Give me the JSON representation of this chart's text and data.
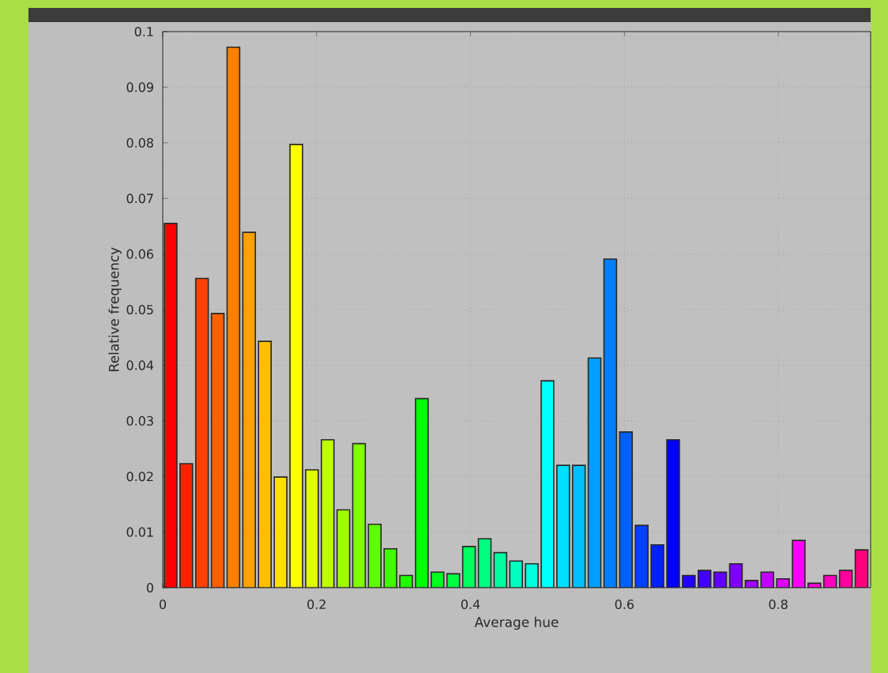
{
  "chart_data": {
    "type": "histogram",
    "xlabel": "Average hue",
    "ylabel": "Relative frequency",
    "bins": [
      0,
      0.0204,
      0.0408,
      0.0612,
      0.0816,
      0.102,
      0.1224,
      0.1429,
      0.1633,
      0.1837,
      0.2041,
      0.2245,
      0.2449,
      0.2653,
      0.2857,
      0.3061,
      0.3265,
      0.3469,
      0.3673,
      0.3878,
      0.4082,
      0.4286,
      0.449,
      0.4694,
      0.4898,
      0.5102,
      0.5306,
      0.551,
      0.5714,
      0.5918,
      0.6122,
      0.6327,
      0.6531,
      0.6735,
      0.6939,
      0.7143,
      0.7347,
      0.7551,
      0.7755,
      0.7959,
      0.8163,
      0.8367,
      0.8571,
      0.8776,
      0.898,
      0.9184
    ],
    "values": [
      0.0655,
      0.0223,
      0.0556,
      0.0493,
      0.0972,
      0.0639,
      0.0443,
      0.0199,
      0.0797,
      0.0212,
      0.0266,
      0.014,
      0.0259,
      0.0114,
      0.007,
      0.0022,
      0.034,
      0.0028,
      0.0025,
      0.0074,
      0.0088,
      0.0063,
      0.0048,
      0.0043,
      0.0372,
      0.022,
      0.022,
      0.0413,
      0.0591,
      0.028,
      0.0112,
      0.0077,
      0.0266,
      0.0022,
      0.0031,
      0.0028,
      0.0043,
      0.0013,
      0.0028,
      0.0016,
      0.0085,
      0.0008,
      0.0022,
      0.0031,
      0.0068
    ],
    "colors": [
      "#ff0000",
      "#ff2000",
      "#ff4000",
      "#ff6000",
      "#ff8000",
      "#ff9f00",
      "#ffbf00",
      "#ffdf00",
      "#ffff00",
      "#dfff00",
      "#bfff00",
      "#9fff00",
      "#80ff00",
      "#60ff00",
      "#40ff00",
      "#20ff00",
      "#00ff00",
      "#00ff20",
      "#00ff40",
      "#00ff60",
      "#00ff80",
      "#00ff9f",
      "#00ffbf",
      "#00ffdf",
      "#00ffff",
      "#00dfff",
      "#00bfff",
      "#009fff",
      "#0080ff",
      "#0060ff",
      "#0040ff",
      "#0020ff",
      "#0000ff",
      "#2000ff",
      "#4000ff",
      "#6000ff",
      "#8000ff",
      "#9f00ff",
      "#bf00ff",
      "#df00ff",
      "#ff00ff",
      "#ff00df",
      "#ff00bf",
      "#ff009f",
      "#ff0080"
    ],
    "xlim": [
      0,
      0.92
    ],
    "ylim": [
      0,
      0.1
    ],
    "xticks": [
      0,
      0.2,
      0.4,
      0.6,
      0.8
    ],
    "yticks": [
      0,
      0.01,
      0.02,
      0.03,
      0.04,
      0.05,
      0.06,
      0.07,
      0.08,
      0.09,
      0.1
    ],
    "grid": true
  }
}
